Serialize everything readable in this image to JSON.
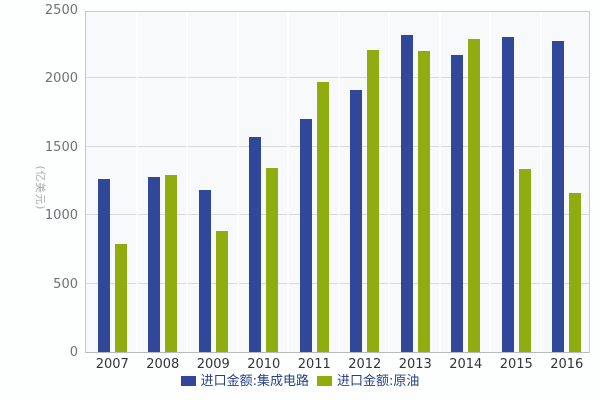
{
  "chart": {
    "background_color": "#fdfefe",
    "plot_background_color": "#f7f9fb",
    "gridline_color": "#d8dadb",
    "axis_label_color": "#6f7274",
    "category_label_color": "#333436",
    "legend_text_color": "#27408b",
    "y_axis_name": "(亿美元)"
  },
  "chart_data": {
    "type": "bar",
    "title": "",
    "xlabel": "",
    "ylabel": "(亿美元)",
    "ylim": [
      0,
      2500
    ],
    "y_ticks": [
      0,
      500,
      1000,
      1500,
      2000,
      2500
    ],
    "grid": true,
    "legend_position": "bottom",
    "categories": [
      "2007",
      "2008",
      "2009",
      "2010",
      "2011",
      "2012",
      "2013",
      "2014",
      "2015",
      "2016"
    ],
    "series": [
      {
        "name": "进口金额:集成电路",
        "key": "integrated-circuits",
        "color": "#31479A",
        "values": [
          1265,
          1277,
          1185,
          1570,
          1702,
          1915,
          2315,
          2170,
          2305,
          2275
        ]
      },
      {
        "name": "进口金额:原油",
        "key": "crude-oil",
        "color": "#8FAD0E",
        "values": [
          790,
          1294,
          885,
          1345,
          1975,
          2205,
          2200,
          2290,
          1340,
          1160
        ]
      }
    ]
  }
}
